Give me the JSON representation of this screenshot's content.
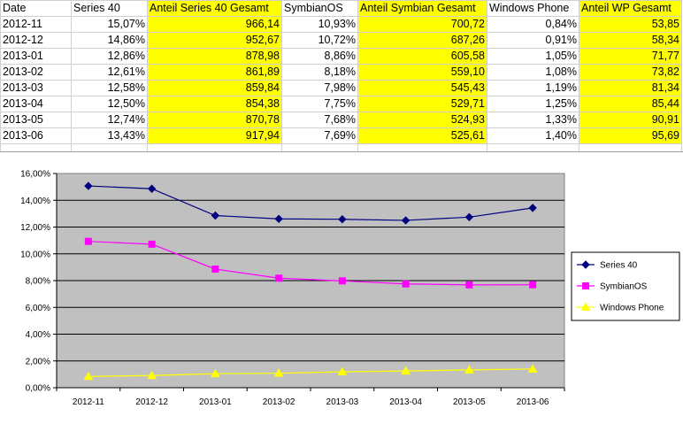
{
  "table": {
    "headers": [
      "Date",
      "Series 40",
      "Anteil Series 40 Gesamt",
      "SymbianOS",
      "Anteil Symbian Gesamt",
      "Windows Phone",
      "Anteil WP Gesamt"
    ],
    "rows": [
      [
        "2012-11",
        "15,07%",
        "966,14",
        "10,93%",
        "700,72",
        "0,84%",
        "53,85"
      ],
      [
        "2012-12",
        "14,86%",
        "952,67",
        "10,72%",
        "687,26",
        "0,91%",
        "58,34"
      ],
      [
        "2013-01",
        "12,86%",
        "878,98",
        "8,86%",
        "605,58",
        "1,05%",
        "71,77"
      ],
      [
        "2013-02",
        "12,61%",
        "861,89",
        "8,18%",
        "559,10",
        "1,08%",
        "73,82"
      ],
      [
        "2013-03",
        "12,58%",
        "859,84",
        "7,98%",
        "545,43",
        "1,19%",
        "81,34"
      ],
      [
        "2013-04",
        "12,50%",
        "854,38",
        "7,75%",
        "529,71",
        "1,25%",
        "85,44"
      ],
      [
        "2013-05",
        "12,74%",
        "870,78",
        "7,68%",
        "524,93",
        "1,33%",
        "90,91"
      ],
      [
        "2013-06",
        "13,43%",
        "917,94",
        "7,69%",
        "525,61",
        "1,40%",
        "95,69"
      ]
    ]
  },
  "chart_data": {
    "type": "line",
    "categories": [
      "2012-11",
      "2012-12",
      "2013-01",
      "2013-02",
      "2013-03",
      "2013-04",
      "2013-05",
      "2013-06"
    ],
    "y_ticks": [
      "0,00%",
      "2,00%",
      "4,00%",
      "6,00%",
      "8,00%",
      "10,00%",
      "12,00%",
      "14,00%",
      "16,00%"
    ],
    "ylim": [
      0,
      16
    ],
    "grid": true,
    "plot_background": "#c0c0c0",
    "legend_position": "right",
    "series": [
      {
        "name": "Series 40",
        "values": [
          15.07,
          14.86,
          12.86,
          12.61,
          12.58,
          12.5,
          12.74,
          13.43
        ],
        "color": "#000080",
        "marker": "diamond"
      },
      {
        "name": "SymbianOS",
        "values": [
          10.93,
          10.72,
          8.86,
          8.18,
          7.98,
          7.75,
          7.68,
          7.69
        ],
        "color": "#ff00ff",
        "marker": "square"
      },
      {
        "name": "Windows Phone",
        "values": [
          0.84,
          0.91,
          1.05,
          1.08,
          1.19,
          1.25,
          1.33,
          1.4
        ],
        "color": "#ffff00",
        "marker": "triangle"
      }
    ]
  }
}
